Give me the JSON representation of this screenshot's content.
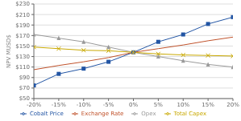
{
  "chart_data": {
    "type": "line",
    "y_label": "NPV MUSD$",
    "x": [
      -20,
      -15,
      -10,
      -5,
      0,
      5,
      10,
      15,
      20
    ],
    "xlim": [
      -20,
      20
    ],
    "xticks": [
      {
        "value": -20,
        "label": "-20%"
      },
      {
        "value": -15,
        "label": "-15%"
      },
      {
        "value": -10,
        "label": "-10%"
      },
      {
        "value": -5,
        "label": "-5%"
      },
      {
        "value": 0,
        "label": "0%"
      },
      {
        "value": 5,
        "label": "5%"
      },
      {
        "value": 10,
        "label": "10%"
      },
      {
        "value": 15,
        "label": "15%"
      },
      {
        "value": 20,
        "label": "20%"
      }
    ],
    "ylim": [
      50,
      230
    ],
    "yticks": [
      {
        "value": 50,
        "label": "$50"
      },
      {
        "value": 70,
        "label": "$70"
      },
      {
        "value": 90,
        "label": "$90"
      },
      {
        "value": 110,
        "label": "$110"
      },
      {
        "value": 130,
        "label": "$130"
      },
      {
        "value": 150,
        "label": "$150"
      },
      {
        "value": 170,
        "label": "$170"
      },
      {
        "value": 190,
        "label": "$190"
      },
      {
        "value": 210,
        "label": "$210"
      },
      {
        "value": 230,
        "label": "$230"
      }
    ],
    "grid": true,
    "legend": "bottom",
    "series": [
      {
        "name": "Cobalt Price",
        "color": "#2255A4",
        "marker": "square",
        "values": [
          75,
          97,
          107,
          120,
          138,
          158,
          172,
          192,
          205
        ]
      },
      {
        "name": "Exchange Rate",
        "color": "#C0522B",
        "marker": "none",
        "values": [
          105,
          113,
          120,
          128,
          138,
          145,
          152,
          160,
          167
        ]
      },
      {
        "name": "Opex",
        "color": "#9A9A9A",
        "marker": "triangle",
        "values": [
          172,
          165,
          158,
          148,
          138,
          130,
          122,
          115,
          110
        ]
      },
      {
        "name": "Total Capex",
        "color": "#C8A800",
        "marker": "x",
        "values": [
          148,
          145,
          142,
          141,
          138,
          135,
          133,
          132,
          131
        ]
      }
    ]
  }
}
